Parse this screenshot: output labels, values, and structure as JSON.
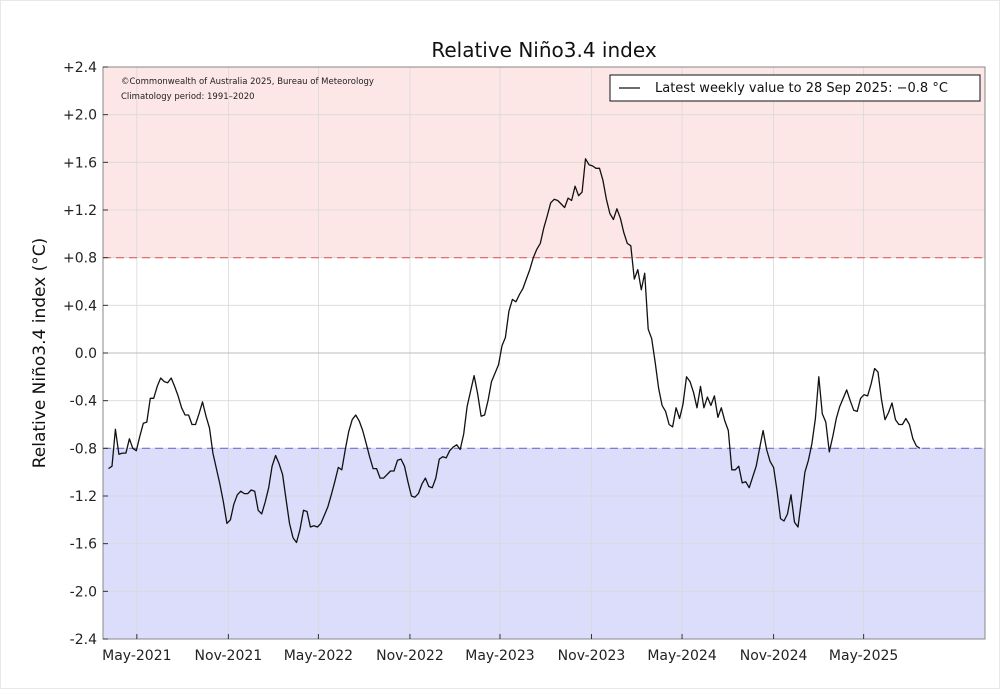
{
  "chart_data": {
    "type": "line",
    "title": "Relative Niño3.4 index",
    "ylabel": "Relative Niño3.4 index (°C)",
    "ylim": [
      -2.4,
      2.4
    ],
    "yticks": [
      "+2.4",
      "+2.0",
      "+1.6",
      "+1.2",
      "+0.8",
      "+0.4",
      "0.0",
      "-0.4",
      "-0.8",
      "-1.2",
      "-1.6",
      "-2.0",
      "-2.4"
    ],
    "ytick_values": [
      2.4,
      2.0,
      1.6,
      1.2,
      0.8,
      0.4,
      0.0,
      -0.4,
      -0.8,
      -1.2,
      -1.6,
      -2.0,
      -2.4
    ],
    "xlim": [
      "2021-02-22",
      "2025-12-31"
    ],
    "xticks": [
      "May-2021",
      "Nov-2021",
      "May-2022",
      "Nov-2022",
      "May-2023",
      "Nov-2023",
      "May-2024",
      "Nov-2024",
      "May-2025"
    ],
    "xtick_dates": [
      "2021-05-01",
      "2021-11-01",
      "2022-05-01",
      "2022-11-01",
      "2023-05-01",
      "2023-11-01",
      "2024-05-01",
      "2024-11-01",
      "2025-05-01"
    ],
    "thresholds": [
      {
        "value": 0.8,
        "color": "#e06060",
        "style": "dashed"
      },
      {
        "value": -0.8,
        "color": "#7070d8",
        "style": "dashed"
      }
    ],
    "bands": [
      {
        "from": 0.8,
        "to": 2.4,
        "color": "#fde6e6"
      },
      {
        "from": -2.4,
        "to": -0.8,
        "color": "#dcdcfb"
      }
    ],
    "grid": true,
    "legend_position": "top-right",
    "legend": "Latest weekly value to 28 Sep 2025: −0.8 °C",
    "copyright": "©Commonwealth of Australia 2025, Bureau of Meteorology",
    "climatology": "Climatology period: 1991–2020",
    "series": [
      {
        "color": "#111111",
        "points": [
          [
            "2021-03-05",
            -0.97
          ],
          [
            "2021-03-12",
            -0.95
          ],
          [
            "2021-03-19",
            -0.64
          ],
          [
            "2021-03-26",
            -0.85
          ],
          [
            "2021-04-02",
            -0.84
          ],
          [
            "2021-04-09",
            -0.84
          ],
          [
            "2021-04-16",
            -0.72
          ],
          [
            "2021-04-23",
            -0.8
          ],
          [
            "2021-04-30",
            -0.82
          ],
          [
            "2021-05-07",
            -0.7
          ],
          [
            "2021-05-14",
            -0.59
          ],
          [
            "2021-05-21",
            -0.58
          ],
          [
            "2021-05-28",
            -0.38
          ],
          [
            "2021-06-04",
            -0.38
          ],
          [
            "2021-06-11",
            -0.28
          ],
          [
            "2021-06-18",
            -0.21
          ],
          [
            "2021-06-25",
            -0.24
          ],
          [
            "2021-07-02",
            -0.25
          ],
          [
            "2021-07-09",
            -0.21
          ],
          [
            "2021-07-16",
            -0.28
          ],
          [
            "2021-07-23",
            -0.36
          ],
          [
            "2021-07-30",
            -0.46
          ],
          [
            "2021-08-06",
            -0.52
          ],
          [
            "2021-08-13",
            -0.52
          ],
          [
            "2021-08-20",
            -0.6
          ],
          [
            "2021-08-27",
            -0.6
          ],
          [
            "2021-09-03",
            -0.51
          ],
          [
            "2021-09-10",
            -0.41
          ],
          [
            "2021-09-17",
            -0.53
          ],
          [
            "2021-09-24",
            -0.63
          ],
          [
            "2021-10-01",
            -0.84
          ],
          [
            "2021-10-08",
            -0.97
          ],
          [
            "2021-10-15",
            -1.1
          ],
          [
            "2021-10-22",
            -1.25
          ],
          [
            "2021-10-29",
            -1.43
          ],
          [
            "2021-11-05",
            -1.4
          ],
          [
            "2021-11-12",
            -1.27
          ],
          [
            "2021-11-19",
            -1.19
          ],
          [
            "2021-11-26",
            -1.16
          ],
          [
            "2021-12-03",
            -1.18
          ],
          [
            "2021-12-10",
            -1.18
          ],
          [
            "2021-12-17",
            -1.15
          ],
          [
            "2021-12-24",
            -1.16
          ],
          [
            "2021-12-31",
            -1.32
          ],
          [
            "2022-01-07",
            -1.35
          ],
          [
            "2022-01-14",
            -1.25
          ],
          [
            "2022-01-21",
            -1.13
          ],
          [
            "2022-01-28",
            -0.95
          ],
          [
            "2022-02-04",
            -0.86
          ],
          [
            "2022-02-11",
            -0.93
          ],
          [
            "2022-02-18",
            -1.02
          ],
          [
            "2022-02-25",
            -1.23
          ],
          [
            "2022-03-04",
            -1.43
          ],
          [
            "2022-03-11",
            -1.55
          ],
          [
            "2022-03-18",
            -1.59
          ],
          [
            "2022-03-25",
            -1.48
          ],
          [
            "2022-04-01",
            -1.32
          ],
          [
            "2022-04-08",
            -1.33
          ],
          [
            "2022-04-15",
            -1.46
          ],
          [
            "2022-04-22",
            -1.45
          ],
          [
            "2022-04-29",
            -1.46
          ],
          [
            "2022-05-06",
            -1.43
          ],
          [
            "2022-05-13",
            -1.36
          ],
          [
            "2022-05-20",
            -1.29
          ],
          [
            "2022-05-27",
            -1.19
          ],
          [
            "2022-06-03",
            -1.08
          ],
          [
            "2022-06-10",
            -0.96
          ],
          [
            "2022-06-17",
            -0.98
          ],
          [
            "2022-06-24",
            -0.81
          ],
          [
            "2022-07-01",
            -0.66
          ],
          [
            "2022-07-08",
            -0.56
          ],
          [
            "2022-07-15",
            -0.52
          ],
          [
            "2022-07-22",
            -0.57
          ],
          [
            "2022-07-29",
            -0.65
          ],
          [
            "2022-08-05",
            -0.76
          ],
          [
            "2022-08-12",
            -0.87
          ],
          [
            "2022-08-19",
            -0.97
          ],
          [
            "2022-08-26",
            -0.97
          ],
          [
            "2022-09-02",
            -1.05
          ],
          [
            "2022-09-09",
            -1.05
          ],
          [
            "2022-09-16",
            -1.02
          ],
          [
            "2022-09-23",
            -0.99
          ],
          [
            "2022-09-30",
            -0.99
          ],
          [
            "2022-10-07",
            -0.9
          ],
          [
            "2022-10-14",
            -0.89
          ],
          [
            "2022-10-21",
            -0.95
          ],
          [
            "2022-10-28",
            -1.08
          ],
          [
            "2022-11-04",
            -1.2
          ],
          [
            "2022-11-11",
            -1.21
          ],
          [
            "2022-11-18",
            -1.18
          ],
          [
            "2022-11-25",
            -1.1
          ],
          [
            "2022-12-02",
            -1.05
          ],
          [
            "2022-12-09",
            -1.12
          ],
          [
            "2022-12-16",
            -1.13
          ],
          [
            "2022-12-23",
            -1.05
          ],
          [
            "2022-12-30",
            -0.89
          ],
          [
            "2023-01-06",
            -0.87
          ],
          [
            "2023-01-13",
            -0.88
          ],
          [
            "2023-01-20",
            -0.82
          ],
          [
            "2023-01-27",
            -0.79
          ],
          [
            "2023-02-03",
            -0.77
          ],
          [
            "2023-02-10",
            -0.81
          ],
          [
            "2023-02-17",
            -0.68
          ],
          [
            "2023-02-24",
            -0.45
          ],
          [
            "2023-03-03",
            -0.32
          ],
          [
            "2023-03-10",
            -0.19
          ],
          [
            "2023-03-17",
            -0.34
          ],
          [
            "2023-03-24",
            -0.53
          ],
          [
            "2023-03-31",
            -0.52
          ],
          [
            "2023-04-07",
            -0.4
          ],
          [
            "2023-04-14",
            -0.24
          ],
          [
            "2023-04-21",
            -0.17
          ],
          [
            "2023-04-28",
            -0.1
          ],
          [
            "2023-05-05",
            0.06
          ],
          [
            "2023-05-12",
            0.13
          ],
          [
            "2023-05-19",
            0.35
          ],
          [
            "2023-05-26",
            0.45
          ],
          [
            "2023-06-02",
            0.43
          ],
          [
            "2023-06-09",
            0.49
          ],
          [
            "2023-06-16",
            0.54
          ],
          [
            "2023-06-23",
            0.62
          ],
          [
            "2023-06-30",
            0.7
          ],
          [
            "2023-07-07",
            0.8
          ],
          [
            "2023-07-14",
            0.87
          ],
          [
            "2023-07-21",
            0.92
          ],
          [
            "2023-07-28",
            1.05
          ],
          [
            "2023-08-04",
            1.15
          ],
          [
            "2023-08-11",
            1.26
          ],
          [
            "2023-08-18",
            1.29
          ],
          [
            "2023-08-25",
            1.28
          ],
          [
            "2023-09-01",
            1.25
          ],
          [
            "2023-09-08",
            1.22
          ],
          [
            "2023-09-15",
            1.3
          ],
          [
            "2023-09-22",
            1.28
          ],
          [
            "2023-09-29",
            1.4
          ],
          [
            "2023-10-06",
            1.32
          ],
          [
            "2023-10-13",
            1.35
          ],
          [
            "2023-10-20",
            1.63
          ],
          [
            "2023-10-27",
            1.58
          ],
          [
            "2023-11-03",
            1.57
          ],
          [
            "2023-11-10",
            1.55
          ],
          [
            "2023-11-17",
            1.55
          ],
          [
            "2023-11-24",
            1.45
          ],
          [
            "2023-12-01",
            1.29
          ],
          [
            "2023-12-08",
            1.17
          ],
          [
            "2023-12-15",
            1.12
          ],
          [
            "2023-12-22",
            1.21
          ],
          [
            "2023-12-29",
            1.13
          ],
          [
            "2024-01-05",
            1.01
          ],
          [
            "2024-01-12",
            0.92
          ],
          [
            "2024-01-19",
            0.9
          ],
          [
            "2024-01-26",
            0.62
          ],
          [
            "2024-02-02",
            0.7
          ],
          [
            "2024-02-09",
            0.53
          ],
          [
            "2024-02-16",
            0.67
          ],
          [
            "2024-02-23",
            0.2
          ],
          [
            "2024-03-01",
            0.12
          ],
          [
            "2024-03-08",
            -0.08
          ],
          [
            "2024-03-15",
            -0.3
          ],
          [
            "2024-03-22",
            -0.44
          ],
          [
            "2024-03-29",
            -0.49
          ],
          [
            "2024-04-05",
            -0.6
          ],
          [
            "2024-04-12",
            -0.62
          ],
          [
            "2024-04-19",
            -0.46
          ],
          [
            "2024-04-26",
            -0.55
          ],
          [
            "2024-05-03",
            -0.43
          ],
          [
            "2024-05-10",
            -0.2
          ],
          [
            "2024-05-17",
            -0.24
          ],
          [
            "2024-05-24",
            -0.33
          ],
          [
            "2024-05-31",
            -0.46
          ],
          [
            "2024-06-07",
            -0.28
          ],
          [
            "2024-06-14",
            -0.46
          ],
          [
            "2024-06-21",
            -0.37
          ],
          [
            "2024-06-28",
            -0.44
          ],
          [
            "2024-07-05",
            -0.36
          ],
          [
            "2024-07-12",
            -0.54
          ],
          [
            "2024-07-19",
            -0.46
          ],
          [
            "2024-07-26",
            -0.57
          ],
          [
            "2024-08-02",
            -0.65
          ],
          [
            "2024-08-09",
            -0.98
          ],
          [
            "2024-08-16",
            -0.98
          ],
          [
            "2024-08-23",
            -0.95
          ],
          [
            "2024-08-30",
            -1.09
          ],
          [
            "2024-09-06",
            -1.08
          ],
          [
            "2024-09-13",
            -1.13
          ],
          [
            "2024-09-20",
            -1.04
          ],
          [
            "2024-09-27",
            -0.95
          ],
          [
            "2024-10-04",
            -0.8
          ],
          [
            "2024-10-11",
            -0.65
          ],
          [
            "2024-10-18",
            -0.81
          ],
          [
            "2024-10-25",
            -0.91
          ],
          [
            "2024-11-01",
            -0.96
          ],
          [
            "2024-11-08",
            -1.16
          ],
          [
            "2024-11-15",
            -1.39
          ],
          [
            "2024-11-22",
            -1.41
          ],
          [
            "2024-11-29",
            -1.35
          ],
          [
            "2024-12-06",
            -1.19
          ],
          [
            "2024-12-13",
            -1.42
          ],
          [
            "2024-12-20",
            -1.46
          ],
          [
            "2024-12-27",
            -1.24
          ],
          [
            "2025-01-03",
            -1.0
          ],
          [
            "2025-01-10",
            -0.9
          ],
          [
            "2025-01-17",
            -0.76
          ],
          [
            "2025-01-24",
            -0.55
          ],
          [
            "2025-01-31",
            -0.2
          ],
          [
            "2025-02-07",
            -0.51
          ],
          [
            "2025-02-14",
            -0.58
          ],
          [
            "2025-02-21",
            -0.83
          ],
          [
            "2025-02-28",
            -0.7
          ],
          [
            "2025-03-07",
            -0.55
          ],
          [
            "2025-03-14",
            -0.45
          ],
          [
            "2025-03-21",
            -0.38
          ],
          [
            "2025-03-28",
            -0.31
          ],
          [
            "2025-04-04",
            -0.4
          ],
          [
            "2025-04-11",
            -0.48
          ],
          [
            "2025-04-18",
            -0.49
          ],
          [
            "2025-04-25",
            -0.38
          ],
          [
            "2025-05-02",
            -0.35
          ],
          [
            "2025-05-09",
            -0.36
          ],
          [
            "2025-05-16",
            -0.26
          ],
          [
            "2025-05-23",
            -0.13
          ],
          [
            "2025-05-30",
            -0.16
          ],
          [
            "2025-06-06",
            -0.39
          ],
          [
            "2025-06-13",
            -0.56
          ],
          [
            "2025-06-20",
            -0.5
          ],
          [
            "2025-06-27",
            -0.42
          ],
          [
            "2025-07-04",
            -0.56
          ],
          [
            "2025-07-11",
            -0.6
          ],
          [
            "2025-07-18",
            -0.6
          ],
          [
            "2025-07-25",
            -0.55
          ],
          [
            "2025-08-01",
            -0.6
          ],
          [
            "2025-08-08",
            -0.72
          ],
          [
            "2025-08-15",
            -0.78
          ],
          [
            "2025-08-22",
            -0.8
          ]
        ]
      }
    ]
  }
}
